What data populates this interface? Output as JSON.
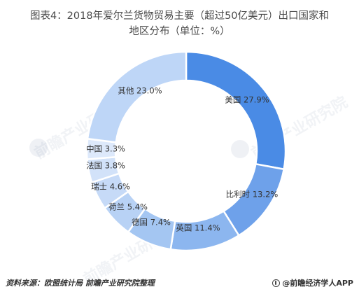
{
  "title_lines": [
    "图表4：2018年爱尔兰货物贸易主要（超过50亿美元）出口国家和",
    "地区分布（单位：%）"
  ],
  "footer": {
    "source": "资料来源：欧盟统计局 前瞻产业研究院整理",
    "brand": "@前瞻经济学人APP"
  },
  "watermark": {
    "text": "前瞻产业研究院"
  },
  "colors": {
    "us": "#4a8be5",
    "chile": "#6ea1ea",
    "uk": "#8cb6ef",
    "germany": "#a4c6f2",
    "netherlands": "#b8d2f5",
    "switzerland": "#c6daf7",
    "france": "#d2e2f9",
    "china": "#dde9fb",
    "other": "#bed6f7"
  },
  "chart_data": {
    "type": "pie",
    "variant": "donut",
    "unit": "%",
    "slices": [
      {
        "name": "美国",
        "value": 27.9,
        "label": "美国 27.9%",
        "color_key": "us"
      },
      {
        "name": "比利时",
        "value": 13.2,
        "label": "比利时 13.2%",
        "color_key": "chile"
      },
      {
        "name": "英国",
        "value": 11.4,
        "label": "英国 11.4%",
        "color_key": "uk"
      },
      {
        "name": "德国",
        "value": 7.4,
        "label": "德国 7.4%",
        "color_key": "germany"
      },
      {
        "name": "荷兰",
        "value": 5.4,
        "label": "荷兰 5.4%",
        "color_key": "netherlands"
      },
      {
        "name": "瑞士",
        "value": 4.6,
        "label": "瑞士 4.6%",
        "color_key": "switzerland"
      },
      {
        "name": "法国",
        "value": 3.8,
        "label": "法国 3.8%",
        "color_key": "france"
      },
      {
        "name": "中国",
        "value": 3.3,
        "label": "中国 3.3%",
        "color_key": "china"
      },
      {
        "name": "其他",
        "value": 23.0,
        "label": "其他 23.0%",
        "color_key": "other"
      }
    ]
  }
}
